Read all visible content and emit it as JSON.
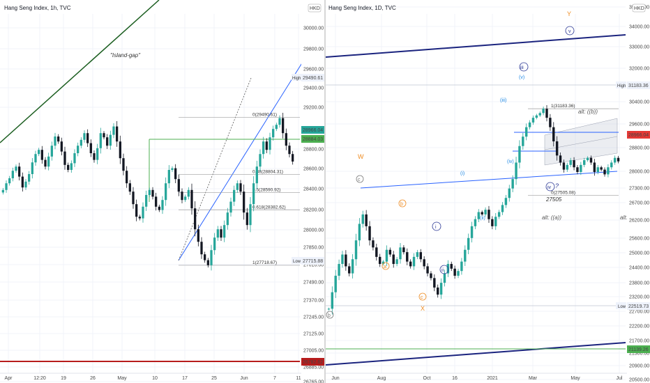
{
  "colors": {
    "up": "#26a69a",
    "down": "#131722",
    "trend_blue": "#2962ff",
    "channel_navy": "#1a237e",
    "green_level": "#4caf50",
    "dark_green": "#1b5e20",
    "red_level": "#b71c1c",
    "orange": "#ef8c22",
    "wave_blue": "#1e88e5",
    "navy": "#283593"
  },
  "chart_data": [
    {
      "type": "candlestick",
      "title": "Hang Seng Index, 1h, TVC",
      "currency": "HKD",
      "ylim": [
        26560,
        30560
      ],
      "y_ticks": [
        "30000.00",
        "29800.00",
        "29600.00",
        "29400.00",
        "29200.00",
        "28800.00",
        "28600.00",
        "28400.00",
        "28200.00",
        "28000.00",
        "27850.00",
        "27610.00",
        "27490.00",
        "27370.00",
        "27245.00",
        "27125.00",
        "27005.00",
        "26885.00",
        "26765.00"
      ],
      "x_ticks": [
        "Apr",
        "12:20",
        "19",
        "26",
        "May",
        "10",
        "17",
        "25",
        "Jun",
        "7",
        "11"
      ],
      "price_tags": {
        "high": "29490.61",
        "current": "28966.04",
        "previous": "28884.03",
        "low": "27715.88",
        "level": "26782.62"
      },
      "tag_labels": {
        "high": "High",
        "low": "Low"
      },
      "fib_levels": [
        {
          "label": "0(29490.61)",
          "value": 29490.61
        },
        {
          "label": "0.38(28804.31)",
          "value": 28804.31
        },
        {
          "label": "0.5(28590.92)",
          "value": 28590.92
        },
        {
          "label": "0.618(28382.62)",
          "value": 28382.62
        },
        {
          "label": "1(27718.67)",
          "value": 27718.67
        }
      ],
      "annotations": [
        "\"Island-gap\""
      ],
      "series": [
        {
          "name": "close",
          "values": [
            28620,
            28700,
            28760,
            28850,
            28900,
            28780,
            28650,
            28720,
            28810,
            28950,
            29050,
            29100,
            28980,
            28900,
            29020,
            29150,
            29260,
            29200,
            29080,
            28920,
            28860,
            28940,
            29060,
            29150,
            29220,
            29300,
            29180,
            29060,
            28980,
            29120,
            29300,
            29250,
            29150,
            29280,
            29380,
            29200,
            29000,
            28850,
            28700,
            28600,
            28450,
            28300,
            28280,
            28420,
            28560,
            28620,
            28540,
            28420,
            28380,
            28500,
            28700,
            28860,
            28880,
            28750,
            28600,
            28500,
            28540,
            28620,
            28400,
            28150,
            28000,
            27850,
            27780,
            27720,
            27900,
            28050,
            28150,
            28050,
            28200,
            28350,
            28480,
            28620,
            28700,
            28600,
            28350,
            28200,
            28450,
            28700,
            28900,
            29050,
            29200,
            29100,
            29250,
            29350,
            29400,
            29480,
            29300,
            29150,
            29050,
            28960
          ]
        }
      ]
    },
    {
      "type": "candlestick",
      "title": "Hang Seng Index, 1D, TVC",
      "currency": "HKD",
      "ylim": [
        20200,
        35500
      ],
      "y_ticks": [
        "35100.00",
        "34000.00",
        "33000.00",
        "32000.00",
        "31183.36",
        "30400.00",
        "29600.00",
        "28800.00",
        "28000.00",
        "27300.00",
        "26700.00",
        "26200.00",
        "25600.00",
        "25000.00",
        "24400.00",
        "23800.00",
        "23200.00",
        "22700.00",
        "22200.00",
        "21700.00",
        "21300.00",
        "20900.00",
        "20500.00"
      ],
      "x_ticks": [
        "Jun",
        "Aug",
        "Oct",
        "16",
        "2021",
        "Mar",
        "May",
        "Jul"
      ],
      "price_tags": {
        "high": "31183.36",
        "current": "28966.04",
        "low": "22519.73",
        "level": "21139.26"
      },
      "tag_labels": {
        "high": "High",
        "low": "Low"
      },
      "fib_levels": [
        {
          "label": "1(31183.36)",
          "value": 31183.36
        },
        {
          "label": "0(27505.08)",
          "value": 27505.08
        }
      ],
      "wave_labels": {
        "W": "W",
        "X": "X",
        "Y": "Y",
        "a": "a",
        "b": "b",
        "c": "c",
        "c_top": "c",
        "b_bottom": "b",
        "i_circle": "i",
        "ii_circle": "ii",
        "iii_circle": "iii",
        "iv_circle": "iv",
        "v_circle": "v",
        "i": "(i)",
        "ii": "(ii)",
        "iii": "(iii)",
        "iv": "(iv)",
        "v": "(v)",
        "q": "?"
      },
      "annotations": {
        "alt_bb": "alt: ((b))",
        "alt_aa": "alt: ((a))",
        "alt_cut": "alt:",
        "level_27505": "27505"
      },
      "series": [
        {
          "name": "close",
          "values": [
            22700,
            23400,
            24100,
            24600,
            25000,
            24500,
            24200,
            24800,
            25600,
            26300,
            26700,
            26200,
            25600,
            25300,
            24900,
            24600,
            24700,
            25200,
            25000,
            24600,
            24800,
            25300,
            25100,
            24700,
            24500,
            24900,
            25100,
            24800,
            24500,
            24200,
            24000,
            23600,
            23300,
            23800,
            24200,
            24600,
            24400,
            24100,
            24300,
            24700,
            25200,
            25700,
            26200,
            26500,
            26800,
            26700,
            26900,
            26500,
            26200,
            26600,
            26800,
            27100,
            27400,
            27800,
            28200,
            28900,
            29600,
            30000,
            30400,
            30600,
            30800,
            30900,
            31000,
            31183,
            30800,
            30400,
            29800,
            29200,
            28900,
            28600,
            28800,
            29000,
            28700,
            28500,
            28800,
            29000,
            29100,
            28900,
            28500,
            28700,
            28600,
            28400,
            28700,
            28900,
            29100,
            28950
          ]
        }
      ]
    }
  ]
}
